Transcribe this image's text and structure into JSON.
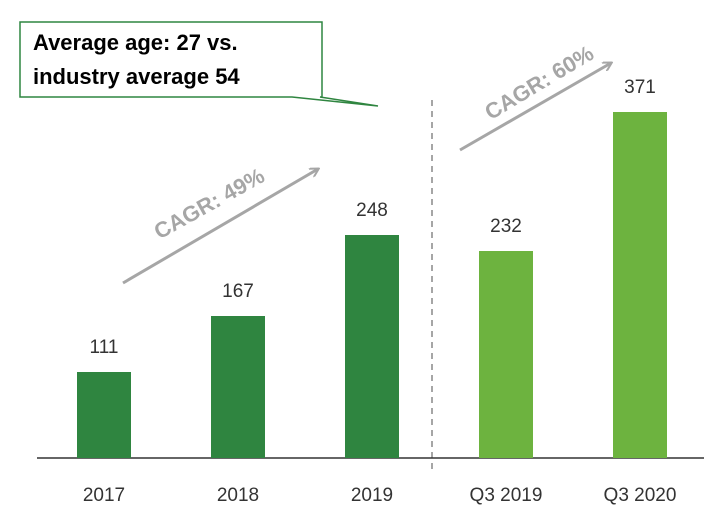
{
  "chart_data": {
    "type": "bar",
    "categories": [
      "2017",
      "2018",
      "2019",
      "Q3 2019",
      "Q3 2020"
    ],
    "values": [
      111,
      167,
      248,
      232,
      371
    ],
    "colors": [
      "#2f8540",
      "#2f8540",
      "#2f8540",
      "#6db33f",
      "#6db33f"
    ],
    "ylim": [
      25,
      400
    ],
    "callout": [
      "Average age: 27 vs.",
      "industry average 54"
    ],
    "annotations": [
      "CAGR: 49%",
      "CAGR: 60%"
    ]
  }
}
